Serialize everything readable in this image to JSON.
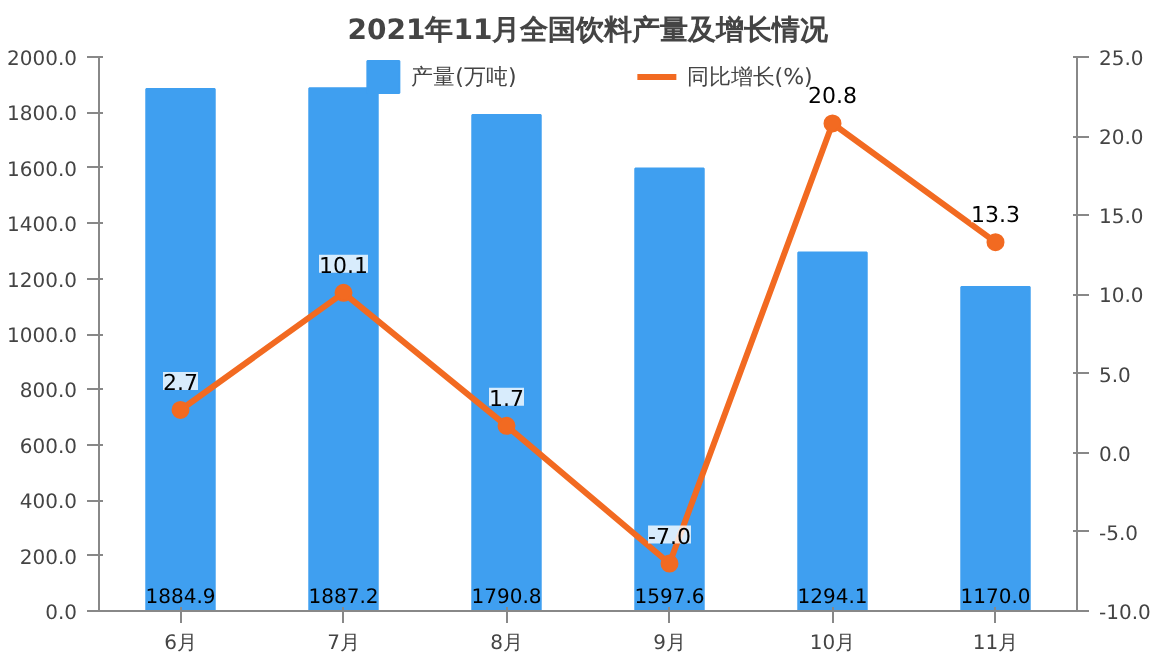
{
  "chart_data": {
    "type": "bar",
    "title": "2021年11月全国饮料产量及增长情况",
    "categories": [
      "6月",
      "7月",
      "8月",
      "9月",
      "10月",
      "11月"
    ],
    "series": [
      {
        "name": "产量(万吨)",
        "color": "#3f9ff0",
        "values": [
          1884.9,
          1887.2,
          1790.8,
          1597.6,
          1294.1,
          1170.0
        ],
        "value_labels": [
          "1884.9",
          "1887.2",
          "1790.8",
          "1597.6",
          "1294.1",
          "1170.0"
        ]
      },
      {
        "name": "同比增长(%)",
        "type": "line",
        "axis": "y2",
        "color": "#f26a21",
        "marker": "circle",
        "values": [
          2.7,
          10.1,
          1.7,
          -7.0,
          20.8,
          13.3
        ],
        "value_labels": [
          "2.7",
          "10.1",
          "1.7",
          "-7.0",
          "20.8",
          "13.3"
        ]
      }
    ],
    "ylim": [
      0,
      2000
    ],
    "yticks": [
      {
        "value": 0,
        "label": "0.0"
      },
      {
        "value": 200,
        "label": "200.0"
      },
      {
        "value": 400,
        "label": "400.0"
      },
      {
        "value": 600,
        "label": "600.0"
      },
      {
        "value": 800,
        "label": "800.0"
      },
      {
        "value": 1000,
        "label": "1000.0"
      },
      {
        "value": 1200,
        "label": "1200.0"
      },
      {
        "value": 1400,
        "label": "1400.0"
      },
      {
        "value": 1600,
        "label": "1600.0"
      },
      {
        "value": 1800,
        "label": "1800.0"
      },
      {
        "value": 2000,
        "label": "2000.0"
      }
    ],
    "y2lim": [
      -10,
      25
    ],
    "y2ticks": [
      {
        "value": -10,
        "label": "-10.0"
      },
      {
        "value": -5,
        "label": "-5.0"
      },
      {
        "value": 0,
        "label": "0.0"
      },
      {
        "value": 5,
        "label": "5.0"
      },
      {
        "value": 10,
        "label": "10.0"
      },
      {
        "value": 15,
        "label": "15.0"
      },
      {
        "value": 20,
        "label": "20.0"
      },
      {
        "value": 25,
        "label": "25.0"
      }
    ],
    "grid": false,
    "legend": "top"
  }
}
